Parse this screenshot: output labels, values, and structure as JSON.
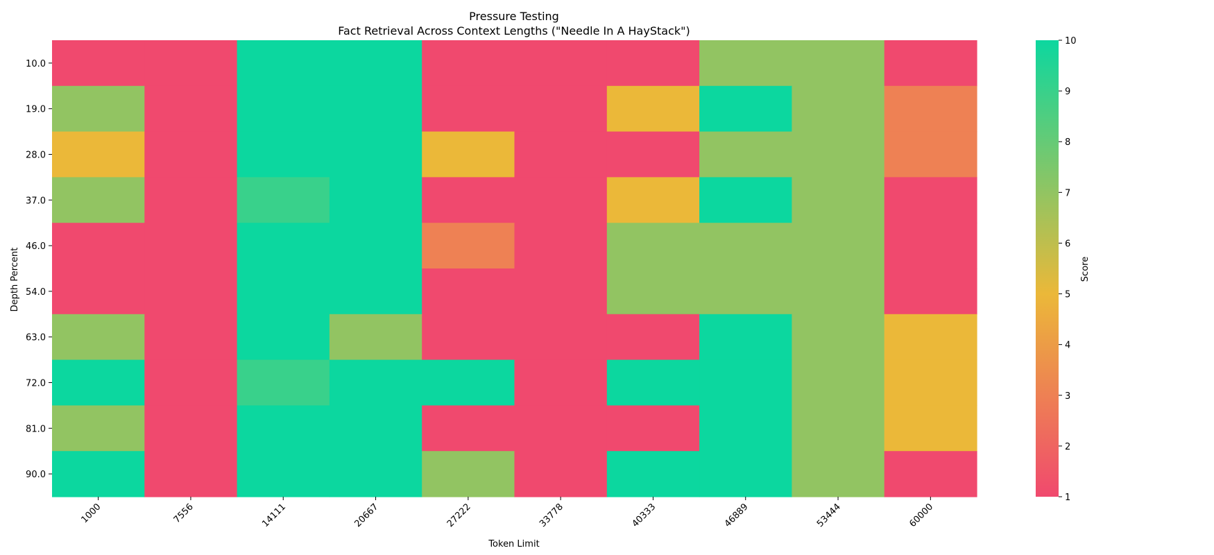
{
  "chart_data": {
    "type": "heatmap",
    "title": "Pressure Testing",
    "subtitle": "Fact Retrieval Across Context Lengths (\"Needle In A HayStack\")",
    "xlabel": "Token Limit",
    "ylabel": "Depth Percent",
    "x": [
      "1000",
      "7556",
      "14111",
      "20667",
      "27222",
      "33778",
      "40333",
      "46889",
      "53444",
      "60000"
    ],
    "y": [
      "10.0",
      "19.0",
      "28.0",
      "37.0",
      "46.0",
      "54.0",
      "63.0",
      "72.0",
      "81.0",
      "90.0"
    ],
    "values": [
      [
        1,
        1,
        10,
        10,
        1,
        1,
        1,
        7,
        7,
        1
      ],
      [
        7,
        1,
        10,
        10,
        1,
        1,
        5,
        10,
        7,
        3
      ],
      [
        5,
        1,
        10,
        10,
        5,
        1,
        1,
        7,
        7,
        3
      ],
      [
        7,
        1,
        9,
        10,
        1,
        1,
        5,
        10,
        7,
        1
      ],
      [
        1,
        1,
        10,
        10,
        3,
        1,
        7,
        7,
        7,
        1
      ],
      [
        1,
        1,
        10,
        10,
        1,
        1,
        7,
        7,
        7,
        1
      ],
      [
        7,
        1,
        10,
        7,
        1,
        1,
        1,
        10,
        7,
        5
      ],
      [
        10,
        1,
        9,
        10,
        10,
        1,
        10,
        10,
        7,
        5
      ],
      [
        7,
        1,
        10,
        10,
        1,
        1,
        1,
        10,
        7,
        5
      ],
      [
        10,
        1,
        10,
        10,
        7,
        1,
        10,
        10,
        7,
        1
      ]
    ],
    "colorbar": {
      "label": "Score",
      "range": [
        1,
        10
      ],
      "ticks": [
        "1",
        "2",
        "3",
        "4",
        "5",
        "6",
        "7",
        "8",
        "9",
        "10"
      ],
      "colors": [
        "#F0496E",
        "#EBB839",
        "#0CD79F"
      ]
    },
    "grid": false
  }
}
